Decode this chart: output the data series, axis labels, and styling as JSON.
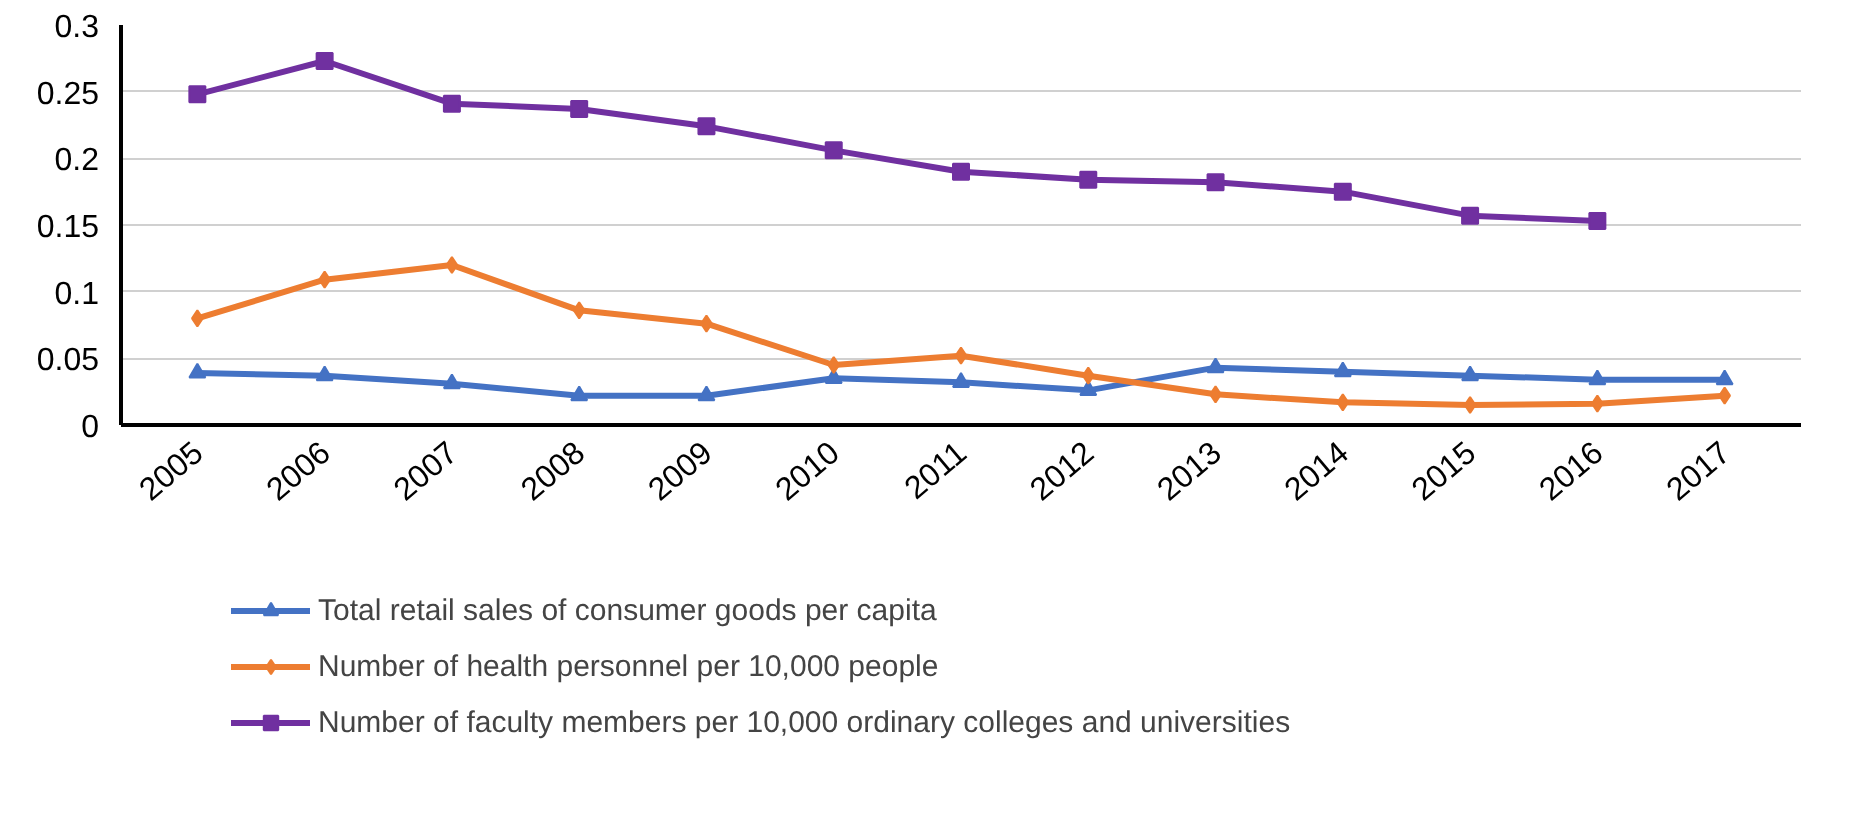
{
  "chart_data": {
    "type": "line",
    "categories": [
      "2005",
      "2006",
      "2007",
      "2008",
      "2009",
      "2010",
      "2011",
      "2012",
      "2013",
      "2014",
      "2015",
      "2016",
      "2017"
    ],
    "series": [
      {
        "name": "Total retail sales of consumer goods per capita",
        "color": "#4472c4",
        "marker": "triangle",
        "values": [
          0.039,
          0.037,
          0.031,
          0.022,
          0.022,
          0.035,
          0.032,
          0.026,
          0.043,
          0.04,
          0.037,
          0.034,
          0.034
        ]
      },
      {
        "name": "Number of health personnel per 10,000 people",
        "color": "#ed7d31",
        "marker": "diamond",
        "values": [
          0.08,
          0.109,
          0.12,
          0.086,
          0.076,
          0.045,
          0.052,
          0.037,
          0.023,
          0.017,
          0.015,
          0.016,
          0.022
        ]
      },
      {
        "name": "Number of faculty members per 10,000 ordinary colleges and universities",
        "color": "#7030a0",
        "marker": "square",
        "values": [
          0.248,
          0.273,
          0.241,
          0.237,
          0.224,
          0.206,
          0.19,
          0.184,
          0.182,
          0.175,
          0.157,
          0.153,
          null
        ]
      }
    ],
    "ylim": [
      0,
      0.3
    ],
    "yticks": [
      0,
      0.05,
      0.1,
      0.15,
      0.2,
      0.25,
      0.3
    ],
    "grid": "y",
    "legend": "bottom",
    "line_style": "solid"
  }
}
